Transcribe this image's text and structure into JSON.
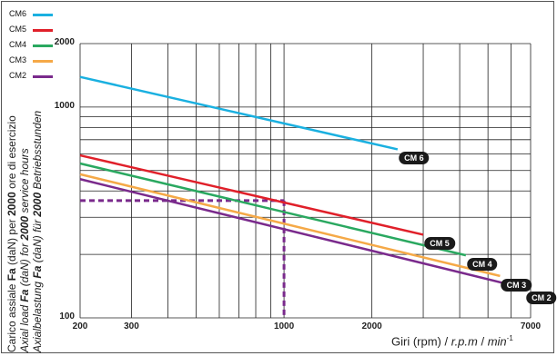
{
  "chart_data": {
    "type": "line",
    "x_scale": "log",
    "y_scale": "log",
    "xlim": [
      200,
      7000
    ],
    "ylim": [
      100,
      2000
    ],
    "x_ticks": [
      {
        "value": 200,
        "label": "200"
      },
      {
        "value": 300,
        "label": "300"
      },
      {
        "value": 1000,
        "label": "1000"
      },
      {
        "value": 2000,
        "label": "2000"
      },
      {
        "value": 7000,
        "label": "7000"
      }
    ],
    "y_ticks": [
      {
        "value": 2000,
        "label": "2000"
      },
      {
        "value": 1000,
        "label": "1000"
      },
      {
        "value": 100,
        "label": "100"
      }
    ],
    "x_grid": [
      200,
      300,
      400,
      500,
      600,
      700,
      800,
      900,
      1000,
      2000,
      3000,
      4000,
      5000,
      6000,
      7000
    ],
    "y_grid": [
      2000,
      1000,
      900,
      800,
      700,
      600,
      500,
      400,
      300,
      200,
      100
    ],
    "xlabel": {
      "plain": "Giri (rpm) / ",
      "italic": "r.p.m",
      "sep": " / ",
      "italic2": "min",
      "sup": "-1"
    },
    "ylabel": {
      "line1": {
        "a": "Carico assiale ",
        "b": "Fa",
        "c": " (daN) per ",
        "d": "2000",
        "e": " ore di esercizio"
      },
      "line2": {
        "a": "Axial load ",
        "b": "Fa",
        "c": " (daN) for ",
        "d": "2000",
        "e": " service hours"
      },
      "line3": {
        "a": "Axialbelastung ",
        "b": "Fa",
        "c": " (daN) für ",
        "d": "2000",
        "e": " Betriebsstunden"
      }
    },
    "series": [
      {
        "name": "CM6",
        "badge": "CM 6",
        "color": "#1ab0e0",
        "x": [
          200,
          2450
        ],
        "y": [
          1390,
          630
        ]
      },
      {
        "name": "CM5",
        "badge": "CM 5",
        "color": "#e0202a",
        "x": [
          200,
          3000
        ],
        "y": [
          590,
          248
        ]
      },
      {
        "name": "CM4",
        "badge": "CM 4",
        "color": "#2aa860",
        "x": [
          200,
          4200
        ],
        "y": [
          540,
          198
        ]
      },
      {
        "name": "CM3",
        "badge": "CM 3",
        "color": "#f5a947",
        "x": [
          200,
          5500
        ],
        "y": [
          480,
          158
        ]
      },
      {
        "name": "CM2",
        "badge": "CM 2",
        "color": "#7a2a8c",
        "x": [
          200,
          6700
        ],
        "y": [
          455,
          138
        ]
      }
    ],
    "example_lines": {
      "color": "#7a2a8c",
      "y_value": 360,
      "x_value": 1000
    }
  }
}
